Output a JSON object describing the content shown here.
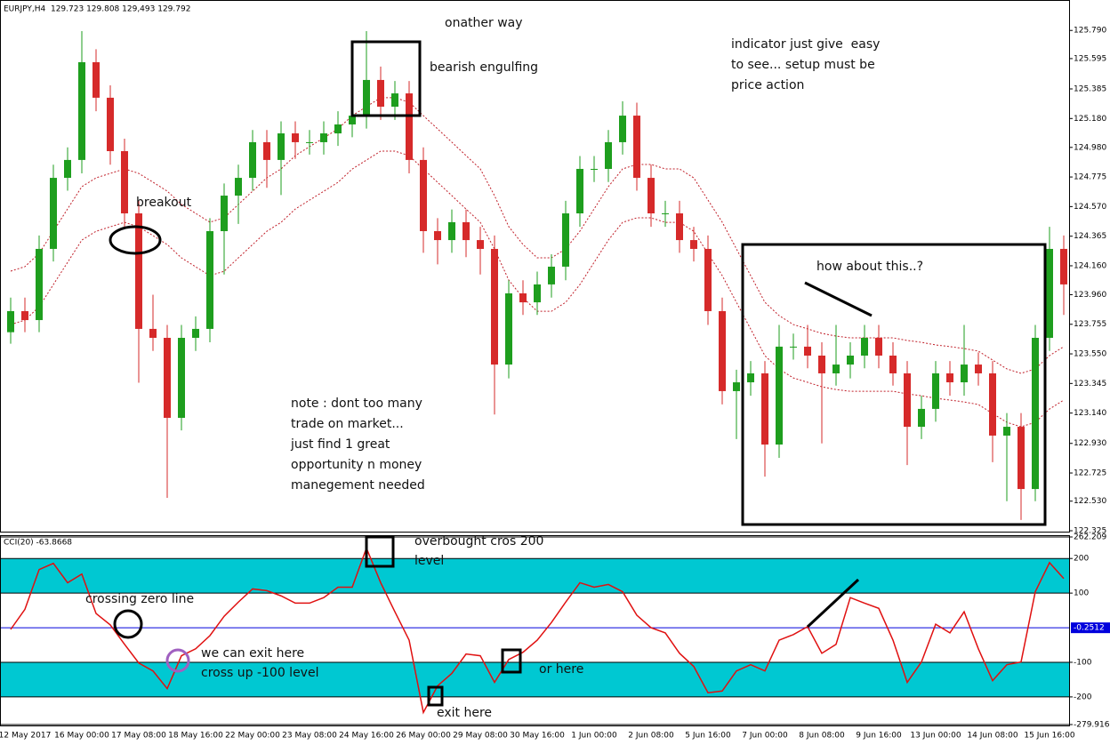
{
  "chart_data": [
    {
      "type": "candlestick",
      "title": "EURJPY,H4  129.723 129.808 129,493 129.792",
      "categories": [
        null,
        "12 May 2017",
        null,
        null,
        null,
        "16 May 00:00",
        null,
        null,
        null,
        "17 May 08:00",
        null,
        null,
        null,
        "18 May 16:00",
        null,
        null,
        null,
        "22 May 00:00",
        null,
        null,
        null,
        "23 May 08:00",
        null,
        null,
        null,
        "24 May 16:00",
        null,
        null,
        null,
        "26 May 00:00",
        null,
        null,
        null,
        "29 May 08:00",
        null,
        null,
        null,
        "30 May 16:00",
        null,
        null,
        null,
        "1 Jun 00:00",
        null,
        null,
        null,
        "2 Jun 08:00",
        null,
        null,
        null,
        "5 Jun 16:00",
        null,
        null,
        null,
        "7 Jun 00:00",
        null,
        null,
        null,
        "8 Jun 08:00",
        null,
        null,
        null,
        "9 Jun 16:00",
        null,
        null,
        null,
        "13 Jun 00:00",
        null,
        null,
        null,
        "14 Jun 08:00",
        null,
        null,
        null,
        "15 Jun 16:00",
        null
      ],
      "open": [
        123.7,
        123.846,
        123.784,
        124.277,
        124.769,
        124.893,
        125.57,
        125.324,
        124.954,
        124.523,
        123.723,
        123.661,
        123.107,
        123.661,
        123.723,
        124.4,
        124.646,
        124.769,
        125.016,
        124.893,
        125.077,
        125.016,
        125.016,
        125.077,
        125.139,
        125.2,
        125.447,
        125.262,
        125.354,
        124.893,
        124.4,
        124.338,
        124.462,
        124.338,
        124.277,
        123.476,
        123.969,
        123.907,
        124.031,
        124.154,
        124.523,
        124.831,
        124.831,
        125.016,
        125.2,
        124.769,
        124.523,
        124.523,
        124.338,
        124.277,
        123.846,
        123.292,
        123.353,
        123.415,
        122.922,
        123.6,
        123.6,
        123.538,
        123.415,
        123.476,
        123.538,
        123.661,
        123.538,
        123.415,
        123.045,
        123.169,
        123.415,
        123.353,
        123.476,
        123.415,
        122.984,
        123.045,
        122.614,
        123.661,
        124.277
      ],
      "high": [
        123.94,
        123.94,
        124.37,
        124.86,
        124.98,
        125.785,
        125.66,
        125.41,
        125.04,
        124.61,
        123.96,
        123.75,
        123.75,
        123.81,
        124.49,
        124.73,
        124.86,
        125.1,
        125.1,
        125.16,
        125.16,
        125.1,
        125.16,
        125.23,
        125.29,
        125.785,
        125.54,
        125.44,
        125.44,
        124.98,
        124.49,
        124.55,
        124.55,
        124.43,
        124.37,
        124.06,
        124.06,
        124.12,
        124.24,
        124.61,
        124.92,
        124.92,
        125.1,
        125.3,
        125.29,
        124.86,
        124.61,
        124.61,
        124.43,
        124.37,
        123.94,
        123.44,
        123.5,
        123.5,
        123.75,
        123.69,
        123.75,
        123.63,
        123.75,
        123.63,
        123.75,
        123.75,
        123.63,
        123.5,
        123.26,
        123.5,
        123.5,
        123.75,
        123.56,
        123.5,
        123.14,
        123.14,
        123.75,
        124.43,
        124.37
      ],
      "low": [
        123.62,
        123.7,
        123.7,
        124.19,
        124.68,
        124.8,
        125.23,
        124.86,
        124.43,
        123.35,
        123.57,
        122.553,
        123.02,
        123.57,
        123.63,
        124.1,
        124.45,
        124.68,
        124.7,
        124.65,
        124.9,
        124.93,
        124.93,
        124.99,
        125.05,
        125.11,
        125.17,
        125.17,
        124.8,
        124.25,
        124.17,
        124.25,
        124.22,
        124.1,
        123.13,
        123.38,
        123.82,
        123.82,
        123.94,
        124.06,
        124.43,
        124.74,
        124.74,
        124.93,
        124.68,
        124.43,
        124.43,
        124.25,
        124.19,
        123.75,
        123.2,
        122.96,
        123.26,
        122.7,
        122.83,
        123.51,
        123.45,
        122.93,
        123.33,
        123.38,
        123.45,
        123.45,
        123.33,
        122.78,
        122.96,
        123.08,
        123.26,
        123.26,
        123.33,
        122.8,
        122.53,
        122.4,
        122.53,
        123.57,
        123.82
      ],
      "close": [
        123.846,
        123.784,
        124.277,
        124.769,
        124.893,
        125.57,
        125.324,
        124.954,
        124.523,
        123.723,
        123.661,
        123.107,
        123.661,
        123.723,
        124.4,
        124.646,
        124.769,
        125.016,
        124.893,
        125.077,
        125.016,
        125.016,
        125.077,
        125.139,
        125.2,
        125.447,
        125.262,
        125.354,
        124.893,
        124.4,
        124.338,
        124.462,
        124.338,
        124.277,
        123.476,
        123.969,
        123.907,
        124.031,
        124.154,
        124.523,
        124.831,
        124.831,
        125.016,
        125.2,
        124.769,
        124.523,
        124.523,
        124.338,
        124.277,
        123.846,
        123.292,
        123.353,
        123.415,
        122.922,
        123.6,
        123.6,
        123.538,
        123.415,
        123.476,
        123.538,
        123.661,
        123.538,
        123.415,
        123.045,
        123.169,
        123.415,
        123.353,
        123.476,
        123.415,
        122.984,
        123.045,
        122.614,
        123.661,
        124.277,
        124.031
      ],
      "up_color": "#1e9e1e",
      "down_color": "#d62a2a",
      "series": [
        {
          "color": "#c0202a",
          "style": "dotted",
          "values": [
            124.123,
            124.154,
            124.246,
            124.4,
            124.554,
            124.708,
            124.769,
            124.8,
            124.831,
            124.8,
            124.739,
            124.677,
            124.585,
            124.523,
            124.462,
            124.492,
            124.585,
            124.677,
            124.769,
            124.831,
            124.923,
            124.985,
            125.046,
            125.108,
            125.2,
            125.262,
            125.324,
            125.324,
            125.293,
            125.2,
            125.108,
            125.016,
            124.923,
            124.831,
            124.646,
            124.431,
            124.308,
            124.215,
            124.215,
            124.277,
            124.4,
            124.554,
            124.708,
            124.831,
            124.862,
            124.862,
            124.831,
            124.831,
            124.769,
            124.615,
            124.462,
            124.277,
            124.092,
            123.907,
            123.815,
            123.753,
            123.723,
            123.692,
            123.673,
            123.661,
            123.661,
            123.661,
            123.661,
            123.643,
            123.63,
            123.612,
            123.6,
            123.587,
            123.569,
            123.507,
            123.446,
            123.415,
            123.446,
            123.538,
            123.6
          ]
        },
        {
          "color": "#c0202a",
          "style": "dotted",
          "values": [
            123.753,
            123.784,
            123.876,
            124.03,
            124.184,
            124.338,
            124.399,
            124.43,
            124.461,
            124.43,
            124.369,
            124.307,
            124.215,
            124.153,
            124.092,
            124.122,
            124.215,
            124.307,
            124.399,
            124.461,
            124.553,
            124.615,
            124.676,
            124.738,
            124.83,
            124.892,
            124.954,
            124.954,
            124.923,
            124.83,
            124.738,
            124.646,
            124.553,
            124.461,
            124.276,
            124.061,
            123.938,
            123.845,
            123.845,
            123.907,
            124.03,
            124.184,
            124.338,
            124.461,
            124.492,
            124.492,
            124.461,
            124.461,
            124.399,
            124.245,
            124.092,
            123.907,
            123.722,
            123.537,
            123.445,
            123.383,
            123.353,
            123.322,
            123.303,
            123.291,
            123.291,
            123.291,
            123.291,
            123.273,
            123.26,
            123.242,
            123.23,
            123.217,
            123.199,
            123.137,
            123.076,
            123.045,
            123.076,
            123.168,
            123.23
          ]
        }
      ],
      "ylim": [
        122.325,
        125.97
      ],
      "yticks": [
        {
          "value": 125.79,
          "label": "125.790"
        },
        125.595,
        125.385,
        {
          "value": 125.18,
          "label": "125.180"
        },
        {
          "value": 124.98,
          "label": "124.980"
        },
        124.775,
        {
          "value": 124.57,
          "label": "124.570"
        },
        124.365,
        {
          "value": 124.16,
          "label": "124.160"
        },
        {
          "value": 123.96,
          "label": "123.960"
        },
        123.755,
        {
          "value": 123.55,
          "label": "123.550"
        },
        123.345,
        {
          "value": 123.14,
          "label": "123.140"
        },
        {
          "value": 122.93,
          "label": "122.930"
        },
        122.725,
        {
          "value": 122.53,
          "label": "122.530"
        },
        122.325
      ],
      "grid": false,
      "annotations": [
        "onather way",
        "bearish engulfing",
        "indicator just give  easy",
        "to see... setup must be",
        "price action",
        "breakout",
        "note : dont too many",
        "trade on market...",
        "just find 1 great",
        "opportunity n money",
        "manegement needed",
        "how about this..?"
      ]
    },
    {
      "type": "line",
      "title": "CCI(20) -63.8668",
      "color": "#e01010",
      "values": [
        -5,
        53,
        168,
        186,
        130,
        155,
        41,
        8,
        -48,
        -102,
        -125,
        -176,
        -81,
        -61,
        -23,
        33,
        74,
        112,
        107,
        92,
        71,
        71,
        87,
        117,
        117,
        230,
        130,
        46,
        -36,
        -245,
        -168,
        -132,
        -76,
        -81,
        -158,
        -92,
        -71,
        -36,
        15,
        74,
        130,
        117,
        125,
        104,
        36,
        0,
        -15,
        -74,
        -112,
        -188,
        -183,
        -125,
        -107,
        -125,
        -36,
        -20,
        3,
        -74,
        -48,
        87,
        71,
        56,
        -36,
        -158,
        -99,
        10,
        -15,
        46,
        -61,
        -153,
        -107,
        -99,
        104,
        188,
        142
      ],
      "ylim": [
        -279.9165,
        262.209
      ],
      "yticks": [
        262.209,
        200,
        100,
        -100,
        -200,
        -279.9165
      ],
      "bands": [
        [
          100,
          200
        ],
        [
          -200,
          -100
        ]
      ],
      "band_color": "#00c8d2",
      "zero_level": {
        "value": -0.2512,
        "color": "#0000dd"
      },
      "annotations": [
        "overbought cros 200",
        "level",
        "crossing zero line",
        "we can exit here",
        "cross up -100 level",
        "or here",
        "exit here"
      ]
    }
  ]
}
